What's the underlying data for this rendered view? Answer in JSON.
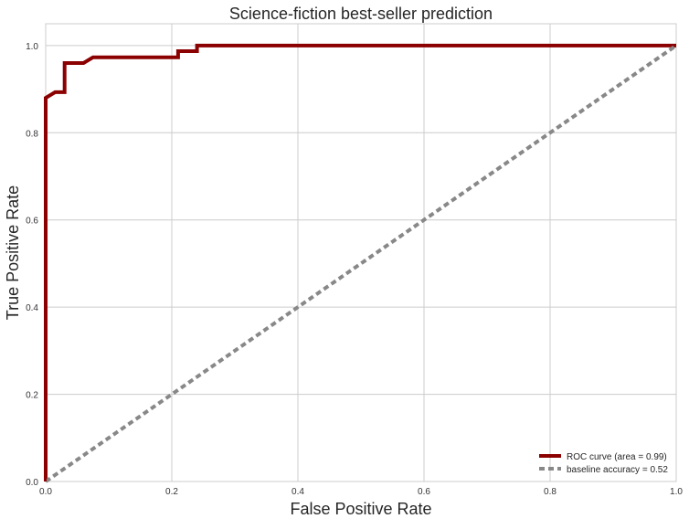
{
  "chart_data": {
    "type": "line",
    "title": "Science-fiction best-seller prediction",
    "xlabel": "False Positive Rate",
    "ylabel": "True Positive Rate",
    "xlim": [
      0.0,
      1.0
    ],
    "ylim": [
      0.0,
      1.05
    ],
    "x_ticks": [
      0.0,
      0.2,
      0.4,
      0.6,
      0.8,
      1.0
    ],
    "y_ticks": [
      0.0,
      0.2,
      0.4,
      0.6,
      0.8,
      1.0
    ],
    "x_tick_labels": [
      "0.0",
      "0.2",
      "0.4",
      "0.6",
      "0.8",
      "1.0"
    ],
    "y_tick_labels": [
      "0.0",
      "0.2",
      "0.4",
      "0.6",
      "0.8",
      "1.0"
    ],
    "grid": true,
    "legend_position": "lower-right",
    "series": [
      {
        "name": "ROC curve (area = 0.99)",
        "color": "#8b0000",
        "style": "solid",
        "x": [
          0.0,
          0.0,
          0.015,
          0.015,
          0.03,
          0.03,
          0.06,
          0.075,
          0.21,
          0.21,
          0.24,
          0.24,
          1.0
        ],
        "y": [
          0.0,
          0.88,
          0.893,
          0.893,
          0.893,
          0.96,
          0.96,
          0.973,
          0.973,
          0.987,
          0.987,
          1.0,
          1.0
        ]
      },
      {
        "name": "baseline accuracy = 0.52",
        "color": "#888888",
        "style": "dashed",
        "x": [
          0.0,
          1.0
        ],
        "y": [
          0.0,
          1.0
        ]
      }
    ]
  }
}
